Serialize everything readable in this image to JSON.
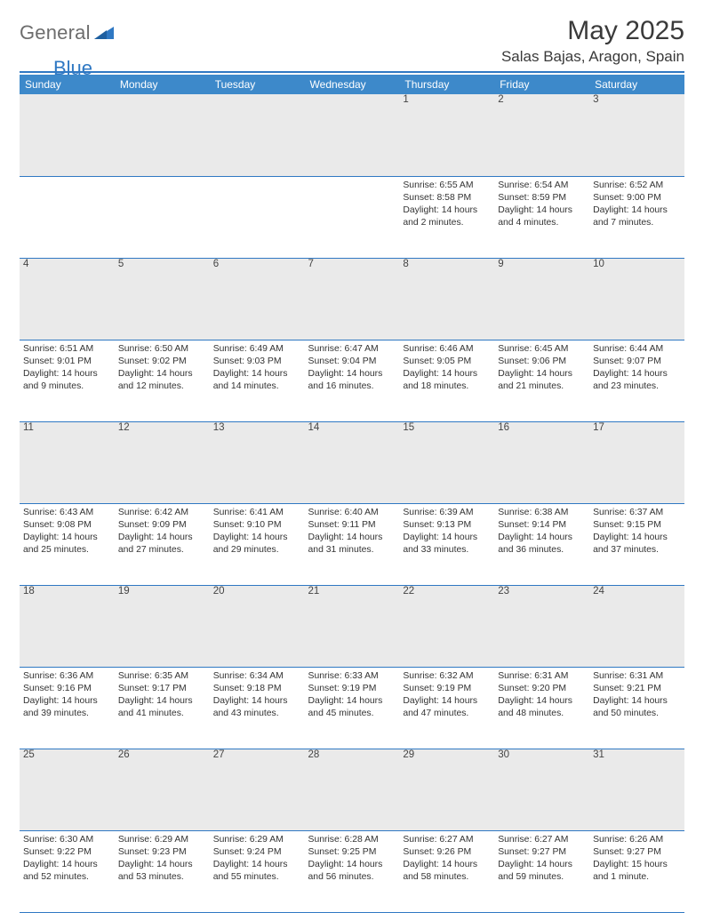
{
  "brand": {
    "general": "General",
    "blue": "Blue"
  },
  "header": {
    "title": "May 2025",
    "location": "Salas Bajas, Aragon, Spain"
  },
  "weekdays": [
    "Sunday",
    "Monday",
    "Tuesday",
    "Wednesday",
    "Thursday",
    "Friday",
    "Saturday"
  ],
  "colors": {
    "accent": "#3d89ca",
    "accent_line": "#2f78c3",
    "daynum_bg": "#eaeaea",
    "text": "#333333",
    "logo_gray": "#6d6d6d"
  },
  "weeks": [
    [
      {
        "day": "",
        "sunrise": "",
        "sunset": "",
        "daylight": ""
      },
      {
        "day": "",
        "sunrise": "",
        "sunset": "",
        "daylight": ""
      },
      {
        "day": "",
        "sunrise": "",
        "sunset": "",
        "daylight": ""
      },
      {
        "day": "",
        "sunrise": "",
        "sunset": "",
        "daylight": ""
      },
      {
        "day": "1",
        "sunrise": "Sunrise: 6:55 AM",
        "sunset": "Sunset: 8:58 PM",
        "daylight": "Daylight: 14 hours and 2 minutes."
      },
      {
        "day": "2",
        "sunrise": "Sunrise: 6:54 AM",
        "sunset": "Sunset: 8:59 PM",
        "daylight": "Daylight: 14 hours and 4 minutes."
      },
      {
        "day": "3",
        "sunrise": "Sunrise: 6:52 AM",
        "sunset": "Sunset: 9:00 PM",
        "daylight": "Daylight: 14 hours and 7 minutes."
      }
    ],
    [
      {
        "day": "4",
        "sunrise": "Sunrise: 6:51 AM",
        "sunset": "Sunset: 9:01 PM",
        "daylight": "Daylight: 14 hours and 9 minutes."
      },
      {
        "day": "5",
        "sunrise": "Sunrise: 6:50 AM",
        "sunset": "Sunset: 9:02 PM",
        "daylight": "Daylight: 14 hours and 12 minutes."
      },
      {
        "day": "6",
        "sunrise": "Sunrise: 6:49 AM",
        "sunset": "Sunset: 9:03 PM",
        "daylight": "Daylight: 14 hours and 14 minutes."
      },
      {
        "day": "7",
        "sunrise": "Sunrise: 6:47 AM",
        "sunset": "Sunset: 9:04 PM",
        "daylight": "Daylight: 14 hours and 16 minutes."
      },
      {
        "day": "8",
        "sunrise": "Sunrise: 6:46 AM",
        "sunset": "Sunset: 9:05 PM",
        "daylight": "Daylight: 14 hours and 18 minutes."
      },
      {
        "day": "9",
        "sunrise": "Sunrise: 6:45 AM",
        "sunset": "Sunset: 9:06 PM",
        "daylight": "Daylight: 14 hours and 21 minutes."
      },
      {
        "day": "10",
        "sunrise": "Sunrise: 6:44 AM",
        "sunset": "Sunset: 9:07 PM",
        "daylight": "Daylight: 14 hours and 23 minutes."
      }
    ],
    [
      {
        "day": "11",
        "sunrise": "Sunrise: 6:43 AM",
        "sunset": "Sunset: 9:08 PM",
        "daylight": "Daylight: 14 hours and 25 minutes."
      },
      {
        "day": "12",
        "sunrise": "Sunrise: 6:42 AM",
        "sunset": "Sunset: 9:09 PM",
        "daylight": "Daylight: 14 hours and 27 minutes."
      },
      {
        "day": "13",
        "sunrise": "Sunrise: 6:41 AM",
        "sunset": "Sunset: 9:10 PM",
        "daylight": "Daylight: 14 hours and 29 minutes."
      },
      {
        "day": "14",
        "sunrise": "Sunrise: 6:40 AM",
        "sunset": "Sunset: 9:11 PM",
        "daylight": "Daylight: 14 hours and 31 minutes."
      },
      {
        "day": "15",
        "sunrise": "Sunrise: 6:39 AM",
        "sunset": "Sunset: 9:13 PM",
        "daylight": "Daylight: 14 hours and 33 minutes."
      },
      {
        "day": "16",
        "sunrise": "Sunrise: 6:38 AM",
        "sunset": "Sunset: 9:14 PM",
        "daylight": "Daylight: 14 hours and 36 minutes."
      },
      {
        "day": "17",
        "sunrise": "Sunrise: 6:37 AM",
        "sunset": "Sunset: 9:15 PM",
        "daylight": "Daylight: 14 hours and 37 minutes."
      }
    ],
    [
      {
        "day": "18",
        "sunrise": "Sunrise: 6:36 AM",
        "sunset": "Sunset: 9:16 PM",
        "daylight": "Daylight: 14 hours and 39 minutes."
      },
      {
        "day": "19",
        "sunrise": "Sunrise: 6:35 AM",
        "sunset": "Sunset: 9:17 PM",
        "daylight": "Daylight: 14 hours and 41 minutes."
      },
      {
        "day": "20",
        "sunrise": "Sunrise: 6:34 AM",
        "sunset": "Sunset: 9:18 PM",
        "daylight": "Daylight: 14 hours and 43 minutes."
      },
      {
        "day": "21",
        "sunrise": "Sunrise: 6:33 AM",
        "sunset": "Sunset: 9:19 PM",
        "daylight": "Daylight: 14 hours and 45 minutes."
      },
      {
        "day": "22",
        "sunrise": "Sunrise: 6:32 AM",
        "sunset": "Sunset: 9:19 PM",
        "daylight": "Daylight: 14 hours and 47 minutes."
      },
      {
        "day": "23",
        "sunrise": "Sunrise: 6:31 AM",
        "sunset": "Sunset: 9:20 PM",
        "daylight": "Daylight: 14 hours and 48 minutes."
      },
      {
        "day": "24",
        "sunrise": "Sunrise: 6:31 AM",
        "sunset": "Sunset: 9:21 PM",
        "daylight": "Daylight: 14 hours and 50 minutes."
      }
    ],
    [
      {
        "day": "25",
        "sunrise": "Sunrise: 6:30 AM",
        "sunset": "Sunset: 9:22 PM",
        "daylight": "Daylight: 14 hours and 52 minutes."
      },
      {
        "day": "26",
        "sunrise": "Sunrise: 6:29 AM",
        "sunset": "Sunset: 9:23 PM",
        "daylight": "Daylight: 14 hours and 53 minutes."
      },
      {
        "day": "27",
        "sunrise": "Sunrise: 6:29 AM",
        "sunset": "Sunset: 9:24 PM",
        "daylight": "Daylight: 14 hours and 55 minutes."
      },
      {
        "day": "28",
        "sunrise": "Sunrise: 6:28 AM",
        "sunset": "Sunset: 9:25 PM",
        "daylight": "Daylight: 14 hours and 56 minutes."
      },
      {
        "day": "29",
        "sunrise": "Sunrise: 6:27 AM",
        "sunset": "Sunset: 9:26 PM",
        "daylight": "Daylight: 14 hours and 58 minutes."
      },
      {
        "day": "30",
        "sunrise": "Sunrise: 6:27 AM",
        "sunset": "Sunset: 9:27 PM",
        "daylight": "Daylight: 14 hours and 59 minutes."
      },
      {
        "day": "31",
        "sunrise": "Sunrise: 6:26 AM",
        "sunset": "Sunset: 9:27 PM",
        "daylight": "Daylight: 15 hours and 1 minute."
      }
    ]
  ]
}
